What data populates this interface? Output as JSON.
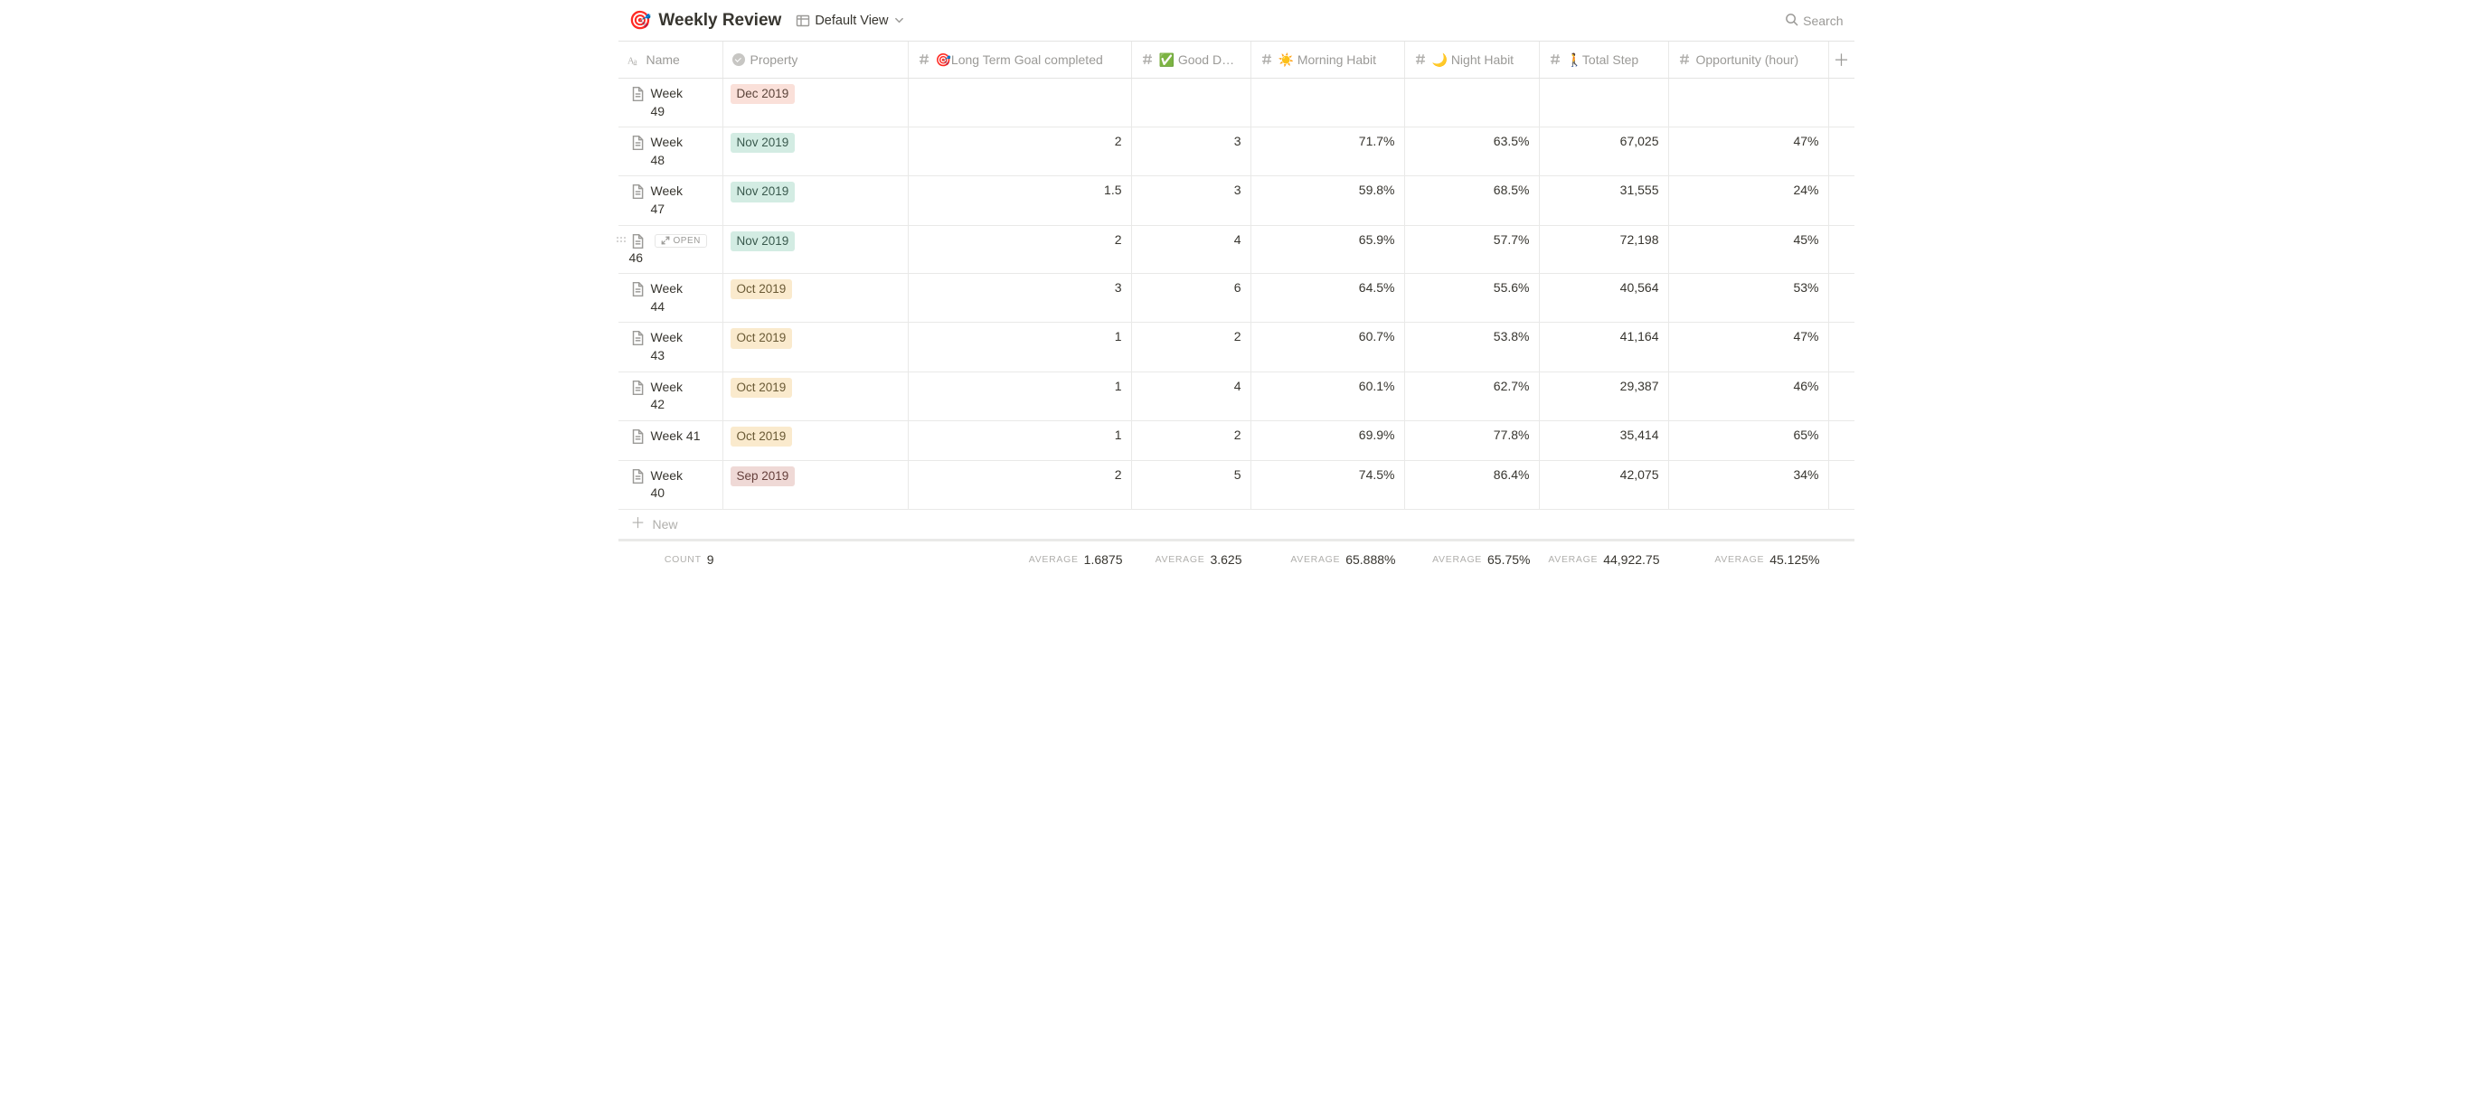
{
  "header": {
    "icon": "🎯",
    "title": "Weekly Review",
    "view_label": "Default View",
    "search_label": "Search"
  },
  "columns": [
    {
      "key": "name",
      "label": "Name",
      "icon": "text",
      "class": "col-name"
    },
    {
      "key": "prop",
      "label": "Property",
      "icon": "select",
      "class": "col-prop"
    },
    {
      "key": "ltg",
      "label": "🎯Long Term Goal completed",
      "icon": "number",
      "class": "col-ltg",
      "emoji": "🎯"
    },
    {
      "key": "good",
      "label": "✅ Good Day (...",
      "icon": "number",
      "class": "col-good",
      "emoji": "✅"
    },
    {
      "key": "morn",
      "label": "☀️ Morning Habit",
      "icon": "number",
      "class": "col-morn",
      "emoji": "☀️"
    },
    {
      "key": "night",
      "label": "🌙 Night Habit",
      "icon": "number",
      "class": "col-night",
      "emoji": "🌙"
    },
    {
      "key": "step",
      "label": "🚶Total Step",
      "icon": "number",
      "class": "col-step",
      "emoji": "🚶"
    },
    {
      "key": "opp",
      "label": "Opportunity (hour)",
      "icon": "number",
      "class": "col-opp"
    }
  ],
  "tag_colors": {
    "Dec 2019": {
      "bg": "#fae0d9",
      "fg": "#5a4339"
    },
    "Nov 2019": {
      "bg": "#d3ece3",
      "fg": "#3a5a4e"
    },
    "Oct 2019": {
      "bg": "#faeacd",
      "fg": "#6a5a35"
    },
    "Sep 2019": {
      "bg": "#efd9d6",
      "fg": "#66403c"
    }
  },
  "rows": [
    {
      "name": "Week 49",
      "prop": "Dec 2019",
      "ltg": "",
      "good": "",
      "morn": "",
      "night": "",
      "step": "",
      "opp": ""
    },
    {
      "name": "Week 48",
      "prop": "Nov 2019",
      "ltg": "2",
      "good": "3",
      "morn": "71.7%",
      "night": "63.5%",
      "step": "67,025",
      "opp": "47%"
    },
    {
      "name": "Week 47",
      "prop": "Nov 2019",
      "ltg": "1.5",
      "good": "3",
      "morn": "59.8%",
      "night": "68.5%",
      "step": "31,555",
      "opp": "24%"
    },
    {
      "name": "Week 46",
      "name_hidden": true,
      "open_pill": true,
      "prop": "Nov 2019",
      "ltg": "2",
      "good": "4",
      "morn": "65.9%",
      "night": "57.7%",
      "step": "72,198",
      "opp": "45%"
    },
    {
      "name": "Week 44",
      "prop": "Oct 2019",
      "ltg": "3",
      "good": "6",
      "morn": "64.5%",
      "night": "55.6%",
      "step": "40,564",
      "opp": "53%"
    },
    {
      "name": "Week 43",
      "prop": "Oct 2019",
      "ltg": "1",
      "good": "2",
      "morn": "60.7%",
      "night": "53.8%",
      "step": "41,164",
      "opp": "47%"
    },
    {
      "name": "Week 42",
      "prop": "Oct 2019",
      "ltg": "1",
      "good": "4",
      "morn": "60.1%",
      "night": "62.7%",
      "step": "29,387",
      "opp": "46%"
    },
    {
      "name": "Week 41",
      "prop": "Oct 2019",
      "ltg": "1",
      "good": "2",
      "morn": "69.9%",
      "night": "77.8%",
      "step": "35,414",
      "opp": "65%",
      "single_line": true
    },
    {
      "name": "Week 40",
      "prop": "Sep 2019",
      "ltg": "2",
      "good": "5",
      "morn": "74.5%",
      "night": "86.4%",
      "step": "42,075",
      "opp": "34%"
    }
  ],
  "new_row_label": "New",
  "open_label": "OPEN",
  "footer": {
    "name": {
      "label": "COUNT",
      "value": "9"
    },
    "ltg": {
      "label": "AVERAGE",
      "value": "1.6875"
    },
    "good": {
      "label": "AVERAGE",
      "value": "3.625"
    },
    "morn": {
      "label": "AVERAGE",
      "value": "65.888%"
    },
    "night": {
      "label": "AVERAGE",
      "value": "65.75%"
    },
    "step": {
      "label": "AVERAGE",
      "value": "44,922.75"
    },
    "opp": {
      "label": "AVERAGE",
      "value": "45.125%"
    }
  }
}
